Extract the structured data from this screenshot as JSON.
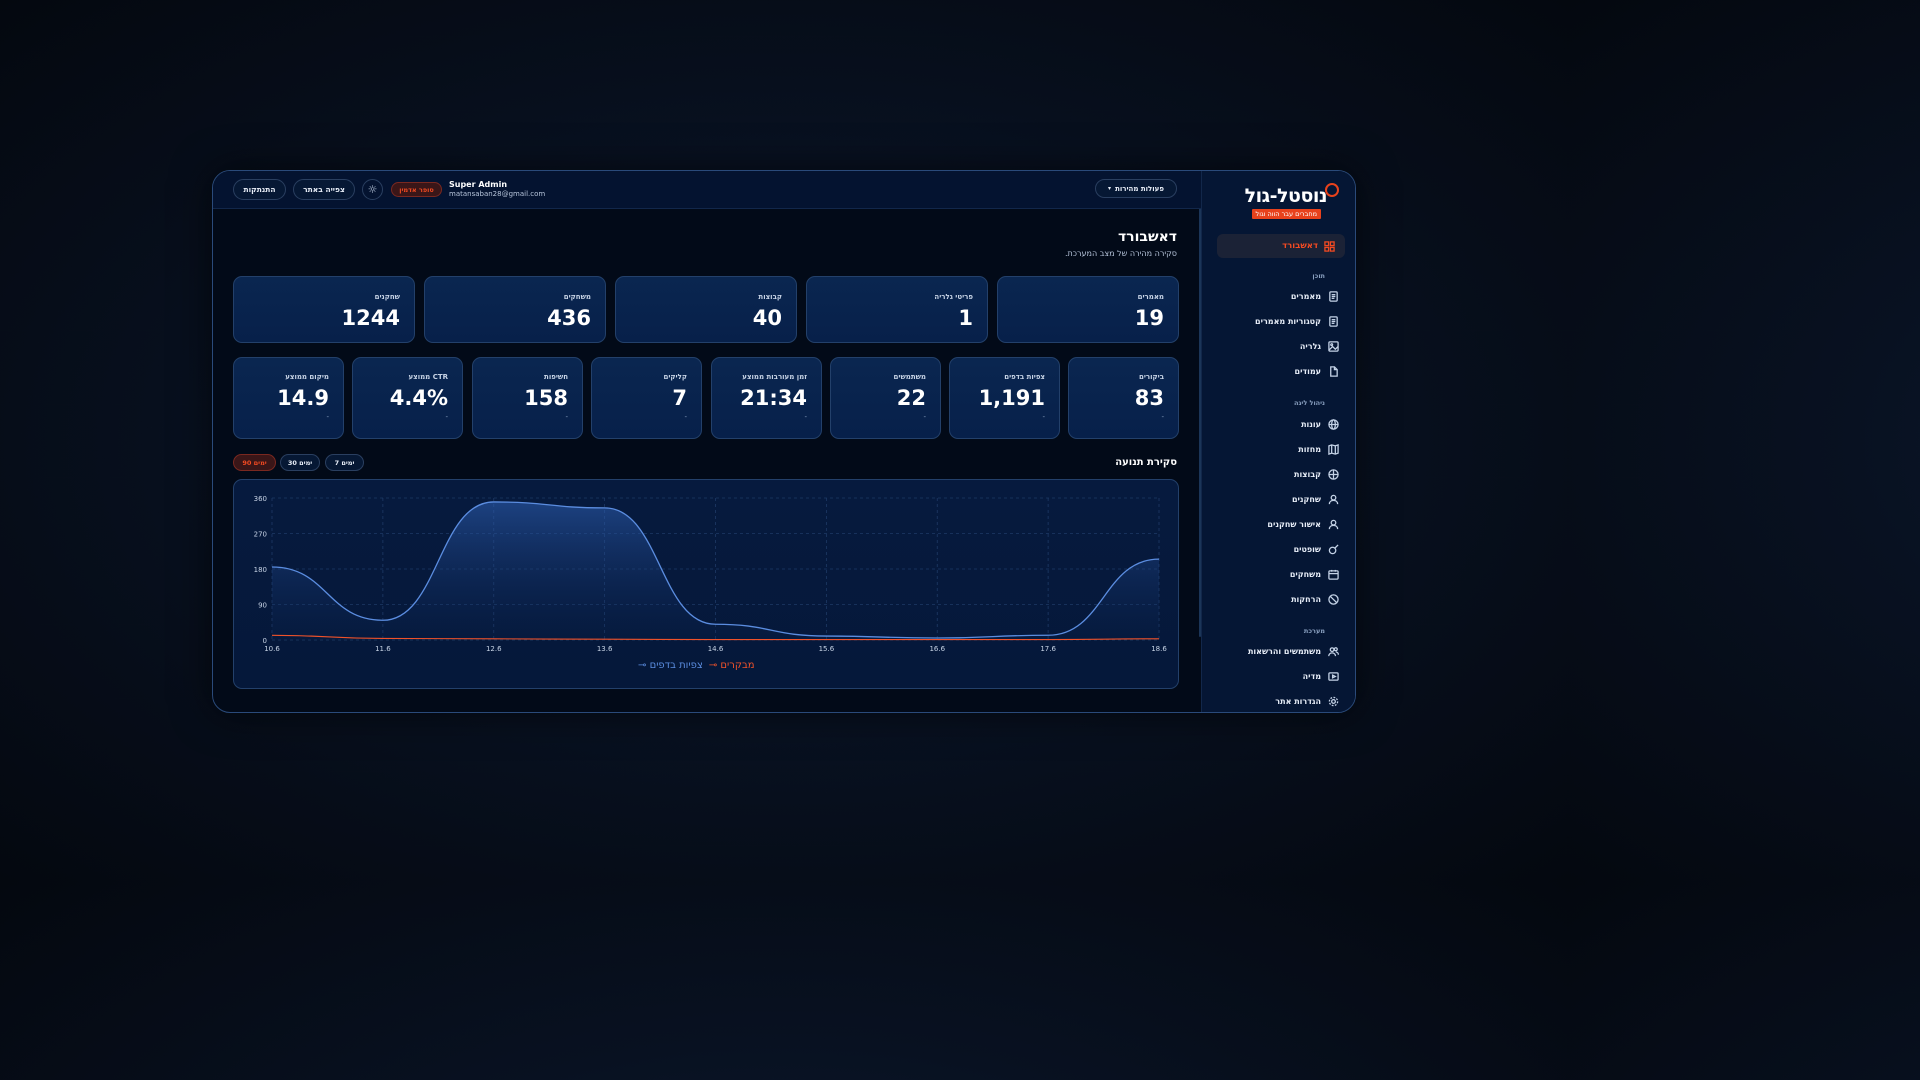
{
  "topbar": {
    "quick_actions": "פעולות מהירות",
    "user_name": "Super Admin",
    "user_email": "matansaban28@gmail.com",
    "role_badge": "סופר אדמין",
    "view_site": "צפייה באתר",
    "logout": "התנתקות"
  },
  "sidebar": {
    "logo_text": "נוסטל-גול",
    "logo_tagline": "מחברים עבר הווה וגול",
    "active_item": "דאשבורד",
    "sections": {
      "content": "תוכן",
      "league": "ניהול ליגה",
      "system": "מערכת"
    },
    "content_items": [
      "מאמרים",
      "קטגוריות מאמרים",
      "גלריה",
      "עמודים"
    ],
    "league_items": [
      "עונות",
      "מחזות",
      "קבוצות",
      "שחקנים",
      "אישור שחקנים",
      "שופטים",
      "משחקים",
      "הרחקות"
    ],
    "system_items": [
      "משתמשים והרשאות",
      "מדיה",
      "הגדרות אתר"
    ]
  },
  "page": {
    "title": "דאשבורד",
    "subtitle": "סקירה מהירה של מצב המערכת."
  },
  "stats_top": [
    {
      "label": "מאמרים",
      "value": "19"
    },
    {
      "label": "פריטי גלריה",
      "value": "1"
    },
    {
      "label": "קבוצות",
      "value": "40"
    },
    {
      "label": "משחקים",
      "value": "436"
    },
    {
      "label": "שחקנים",
      "value": "1244"
    }
  ],
  "stats_bottom": [
    {
      "label": "ביקורים",
      "value": "83",
      "delta": "-"
    },
    {
      "label": "צפיות בדפים",
      "value": "1,191",
      "delta": "-"
    },
    {
      "label": "משתמשים",
      "value": "22",
      "delta": "-"
    },
    {
      "label": "זמן מעורבות ממוצע",
      "value": "21:34",
      "delta": "-"
    },
    {
      "label": "קליקים",
      "value": "7",
      "delta": "-"
    },
    {
      "label": "חשיפות",
      "value": "158",
      "delta": "-"
    },
    {
      "label": "CTR ממוצע",
      "value": "4.4%",
      "delta": "-"
    },
    {
      "label": "מיקום ממוצע",
      "value": "14.9",
      "delta": "-"
    }
  ],
  "traffic": {
    "title": "סקירת תנועה",
    "ranges": [
      "7 ימים",
      "30 ימים",
      "90 ימים"
    ],
    "active_range": "90 ימים"
  },
  "colors": {
    "accent": "#f24a22",
    "pageviews": "#5b8de0",
    "visitors": "#f0522a"
  },
  "chart_data": {
    "type": "area",
    "x": [
      "10.6",
      "11.6",
      "12.6",
      "13.6",
      "14.6",
      "15.6",
      "16.6",
      "17.6",
      "18.6"
    ],
    "ylim": [
      0,
      360
    ],
    "yticks": [
      "0",
      "90",
      "180",
      "270",
      "360"
    ],
    "grid": true,
    "legend_position": "bottom-center",
    "series": [
      {
        "name": "צפיות בדפים",
        "values": [
          185,
          50,
          350,
          335,
          40,
          10,
          5,
          12,
          205
        ]
      },
      {
        "name": "מבקרים",
        "values": [
          12,
          4,
          3,
          2,
          1,
          1,
          1,
          1,
          3
        ]
      }
    ]
  }
}
